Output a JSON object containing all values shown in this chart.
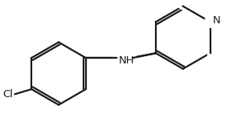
{
  "bg_color": "#ffffff",
  "line_color": "#1a1a1a",
  "line_width": 1.6,
  "font_size_atom": 9.5,
  "Cl_label": "Cl",
  "N_label": "N",
  "NH_label": "NH",
  "fig_width": 3.0,
  "fig_height": 1.52,
  "dpi": 100
}
